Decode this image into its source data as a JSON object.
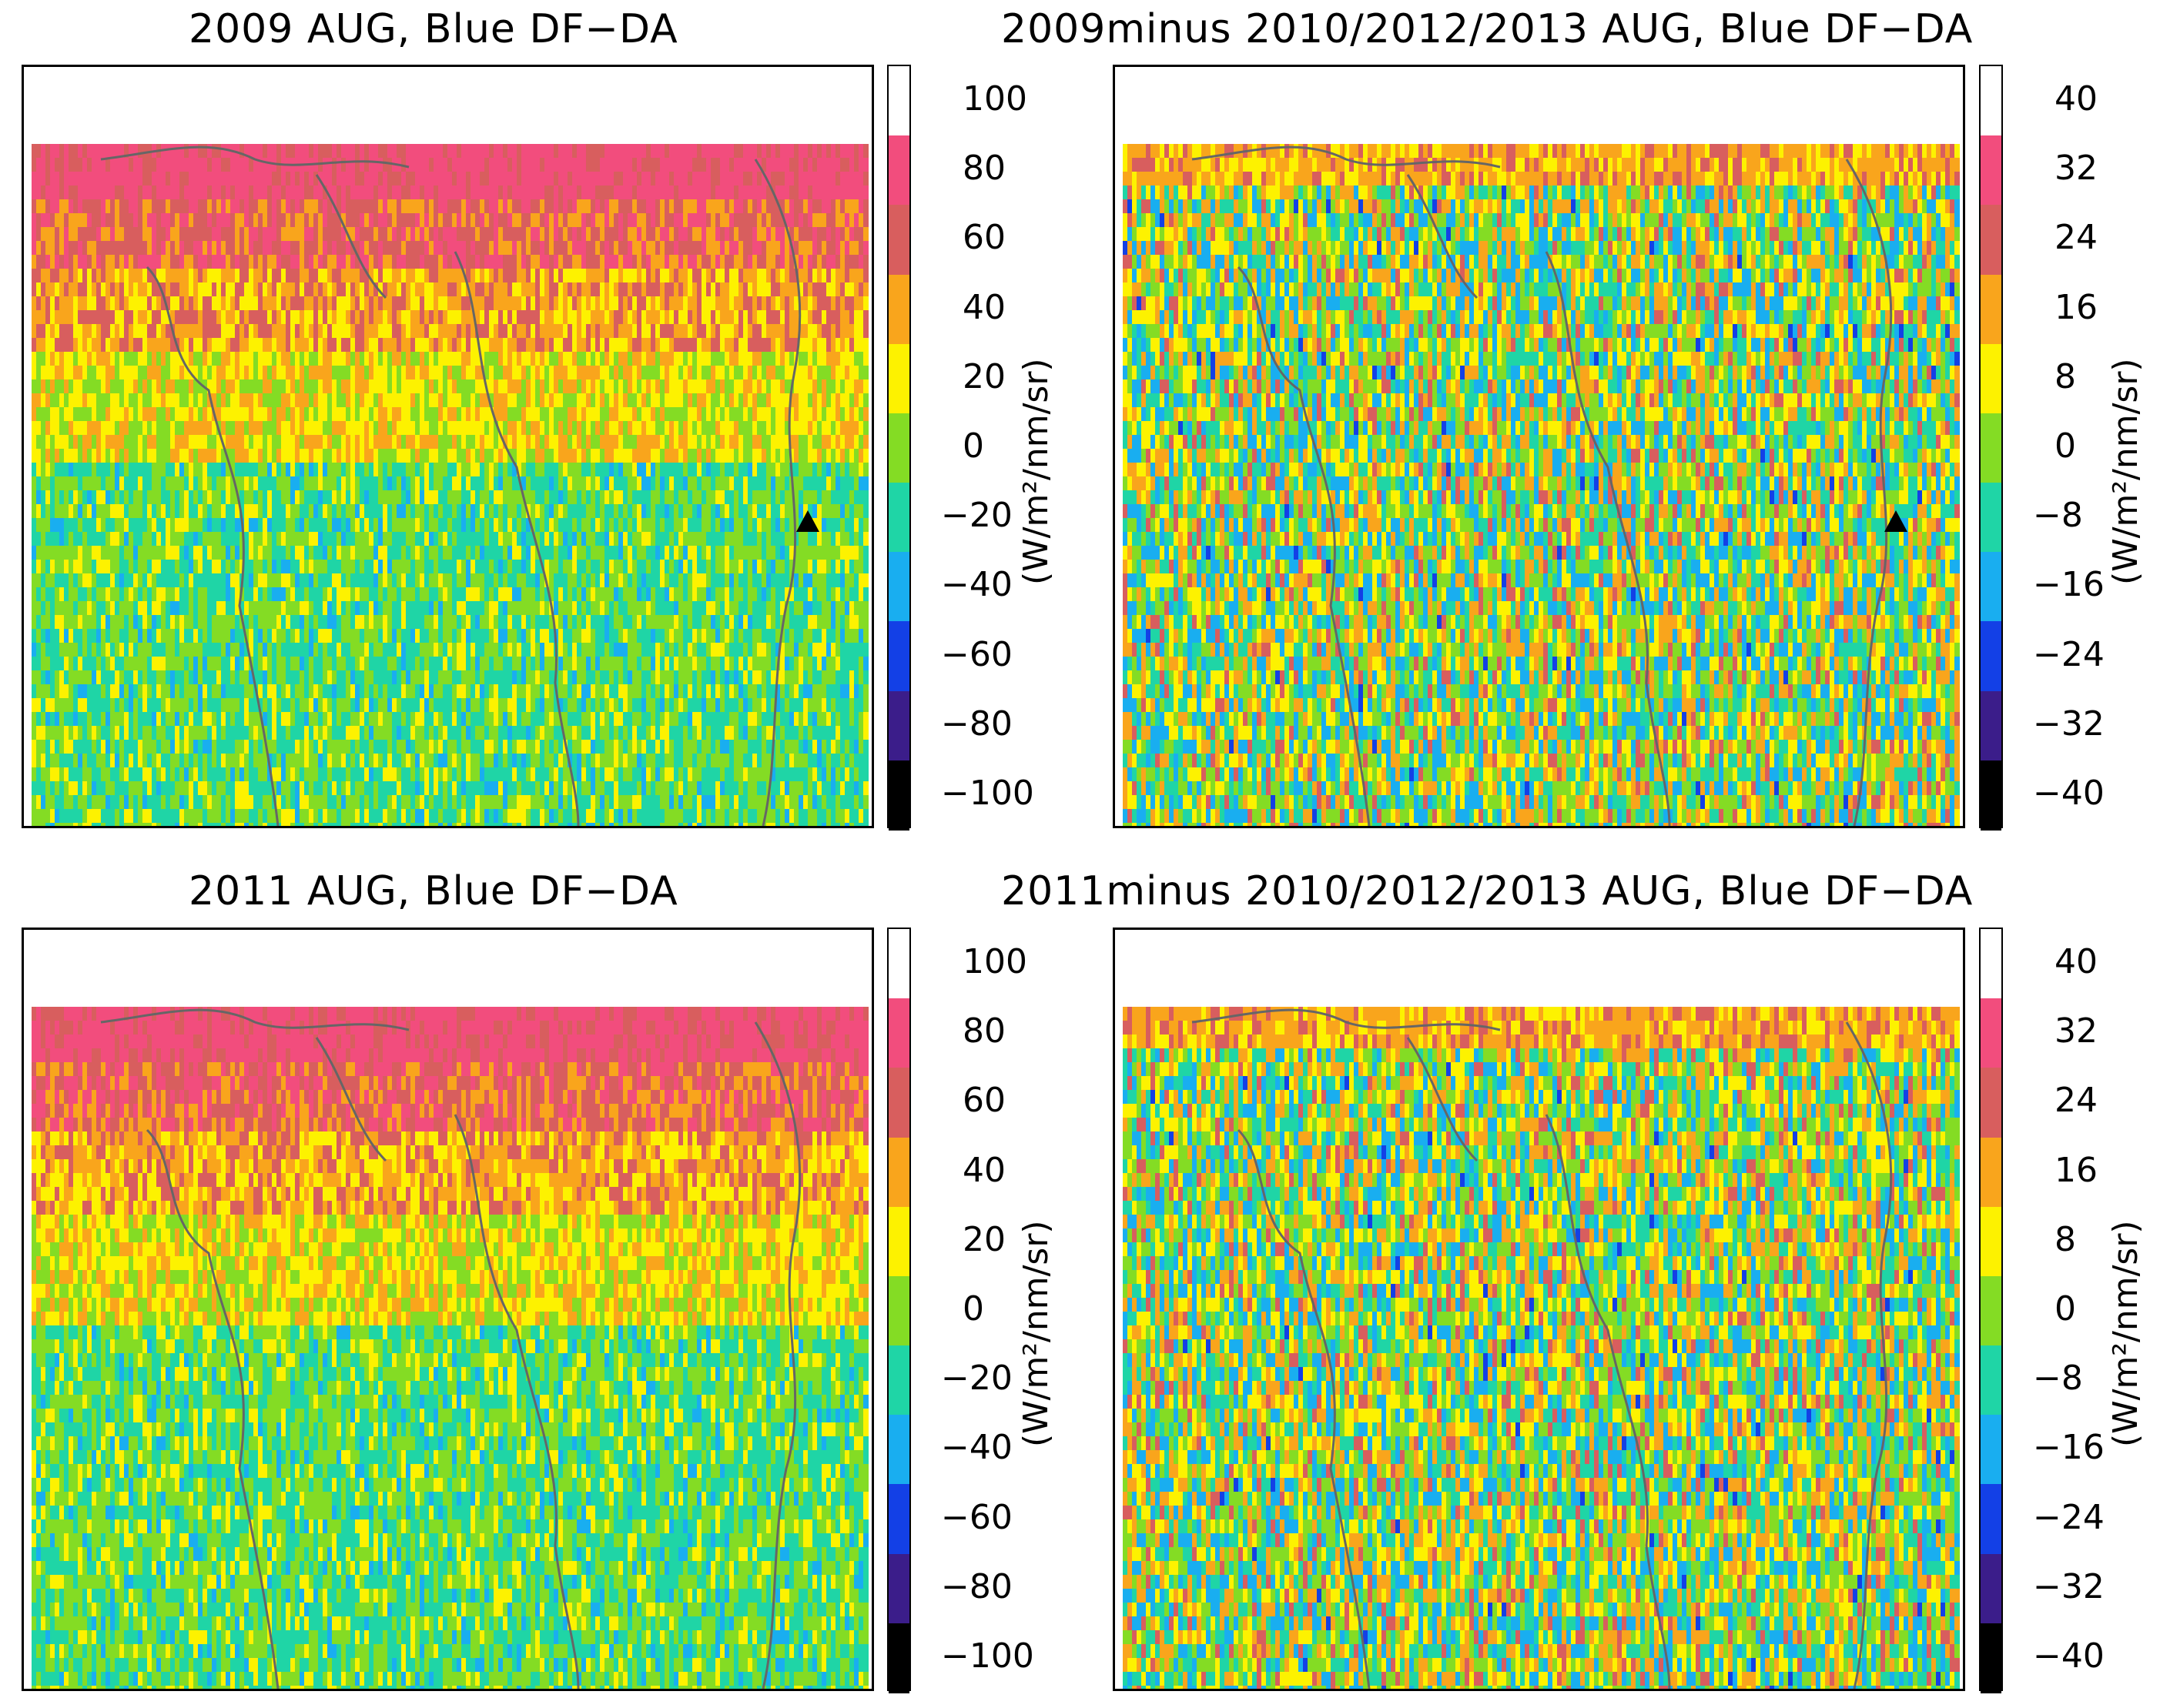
{
  "panels": [
    {
      "id": "p1",
      "title": "2009 AUG, Blue DF−DA",
      "colorbar": "abs",
      "marker": true
    },
    {
      "id": "p2",
      "title": "2009minus 2010/2012/2013 AUG, Blue DF−DA",
      "colorbar": "diff",
      "marker": true
    },
    {
      "id": "p3",
      "title": "2011 AUG, Blue DF−DA",
      "colorbar": "abs",
      "marker": false
    },
    {
      "id": "p4",
      "title": "2011minus 2010/2012/2013 AUG, Blue DF−DA",
      "colorbar": "diff",
      "marker": false
    }
  ],
  "colorbars": {
    "unit": "(W/m²/nm/sr)",
    "colors": [
      "#000000",
      "#3b1d8a",
      "#1340e6",
      "#19aef0",
      "#1fd5a6",
      "#84dc24",
      "#fdf200",
      "#f9a51c",
      "#d85e5e",
      "#f24d7d",
      "#ffffff"
    ],
    "abs": {
      "ticks": [
        "100",
        "80",
        "60",
        "40",
        "20",
        "0",
        "−20",
        "−40",
        "−60",
        "−80",
        "−100"
      ]
    },
    "diff": {
      "ticks": [
        "40",
        "32",
        "24",
        "16",
        "8",
        "0",
        "−8",
        "−16",
        "−24",
        "−32",
        "−40"
      ]
    }
  },
  "chart_data": [
    {
      "type": "heatmap",
      "title": "2009 AUG, Blue DF−DA",
      "colorbar_label": "(W/m²/nm/sr)",
      "colorbar_range": [
        -100,
        100
      ],
      "colorbar_ticks": [
        100,
        80,
        60,
        40,
        20,
        0,
        -20,
        -40,
        -60,
        -80,
        -100
      ]
    },
    {
      "type": "heatmap",
      "title": "2009minus 2010/2012/2013 AUG, Blue DF−DA",
      "colorbar_label": "(W/m²/nm/sr)",
      "colorbar_range": [
        -40,
        40
      ],
      "colorbar_ticks": [
        40,
        32,
        24,
        16,
        8,
        0,
        -8,
        -16,
        -24,
        -32,
        -40
      ]
    },
    {
      "type": "heatmap",
      "title": "2011 AUG, Blue DF−DA",
      "colorbar_label": "(W/m²/nm/sr)",
      "colorbar_range": [
        -100,
        100
      ],
      "colorbar_ticks": [
        100,
        80,
        60,
        40,
        20,
        0,
        -20,
        -40,
        -60,
        -80,
        -100
      ]
    },
    {
      "type": "heatmap",
      "title": "2011minus 2010/2012/2013 AUG, Blue DF−DA",
      "colorbar_label": "(W/m²/nm/sr)",
      "colorbar_range": [
        -40,
        40
      ],
      "colorbar_ticks": [
        40,
        32,
        24,
        16,
        8,
        0,
        -8,
        -16,
        -24,
        -32,
        -40
      ]
    }
  ]
}
